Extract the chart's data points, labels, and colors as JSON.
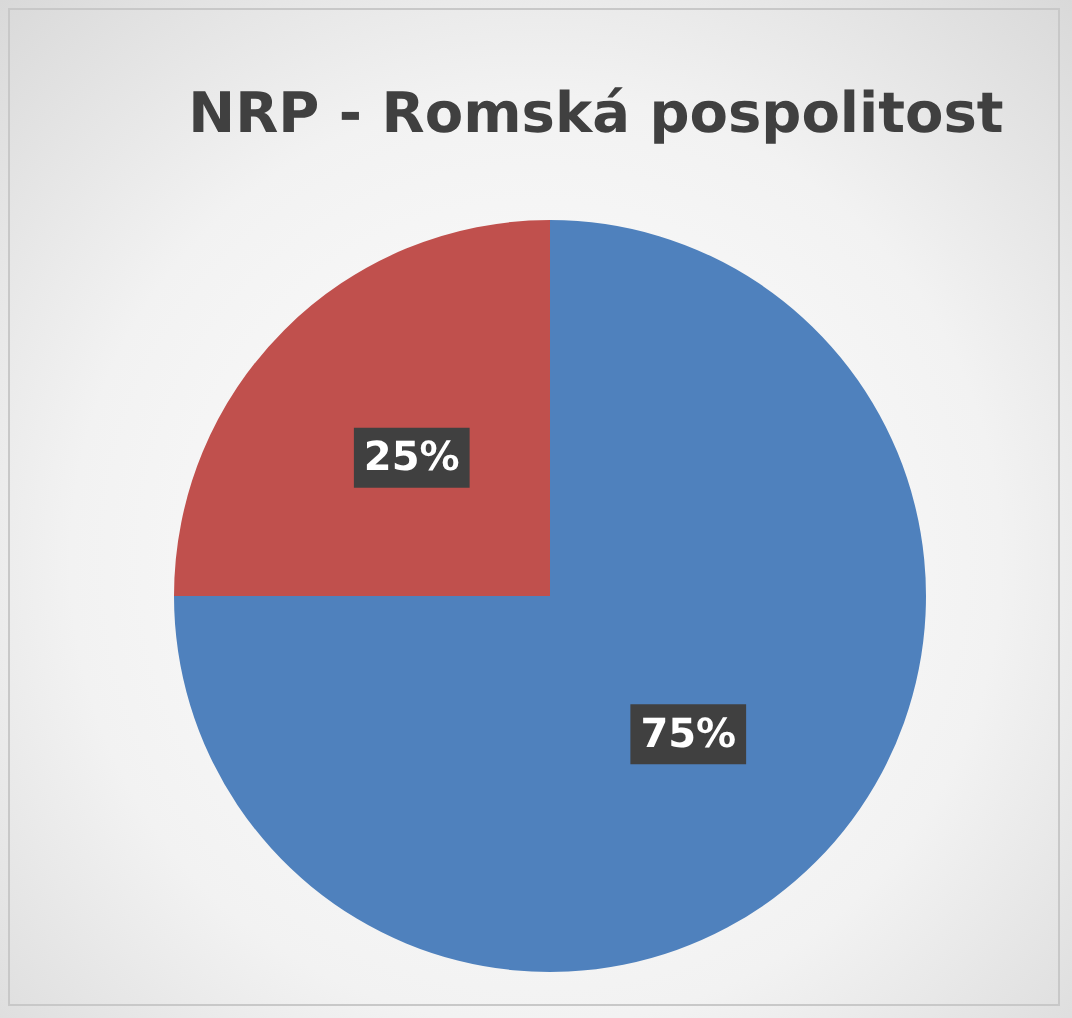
{
  "chart_data": {
    "type": "pie",
    "title": "NRP - Romská pospolitost",
    "categories": [
      null,
      null
    ],
    "values": [
      75,
      25
    ],
    "colors": [
      "#4f81bd",
      "#c0504d"
    ],
    "value_labels": [
      "75%",
      "25%"
    ],
    "legend": false
  }
}
